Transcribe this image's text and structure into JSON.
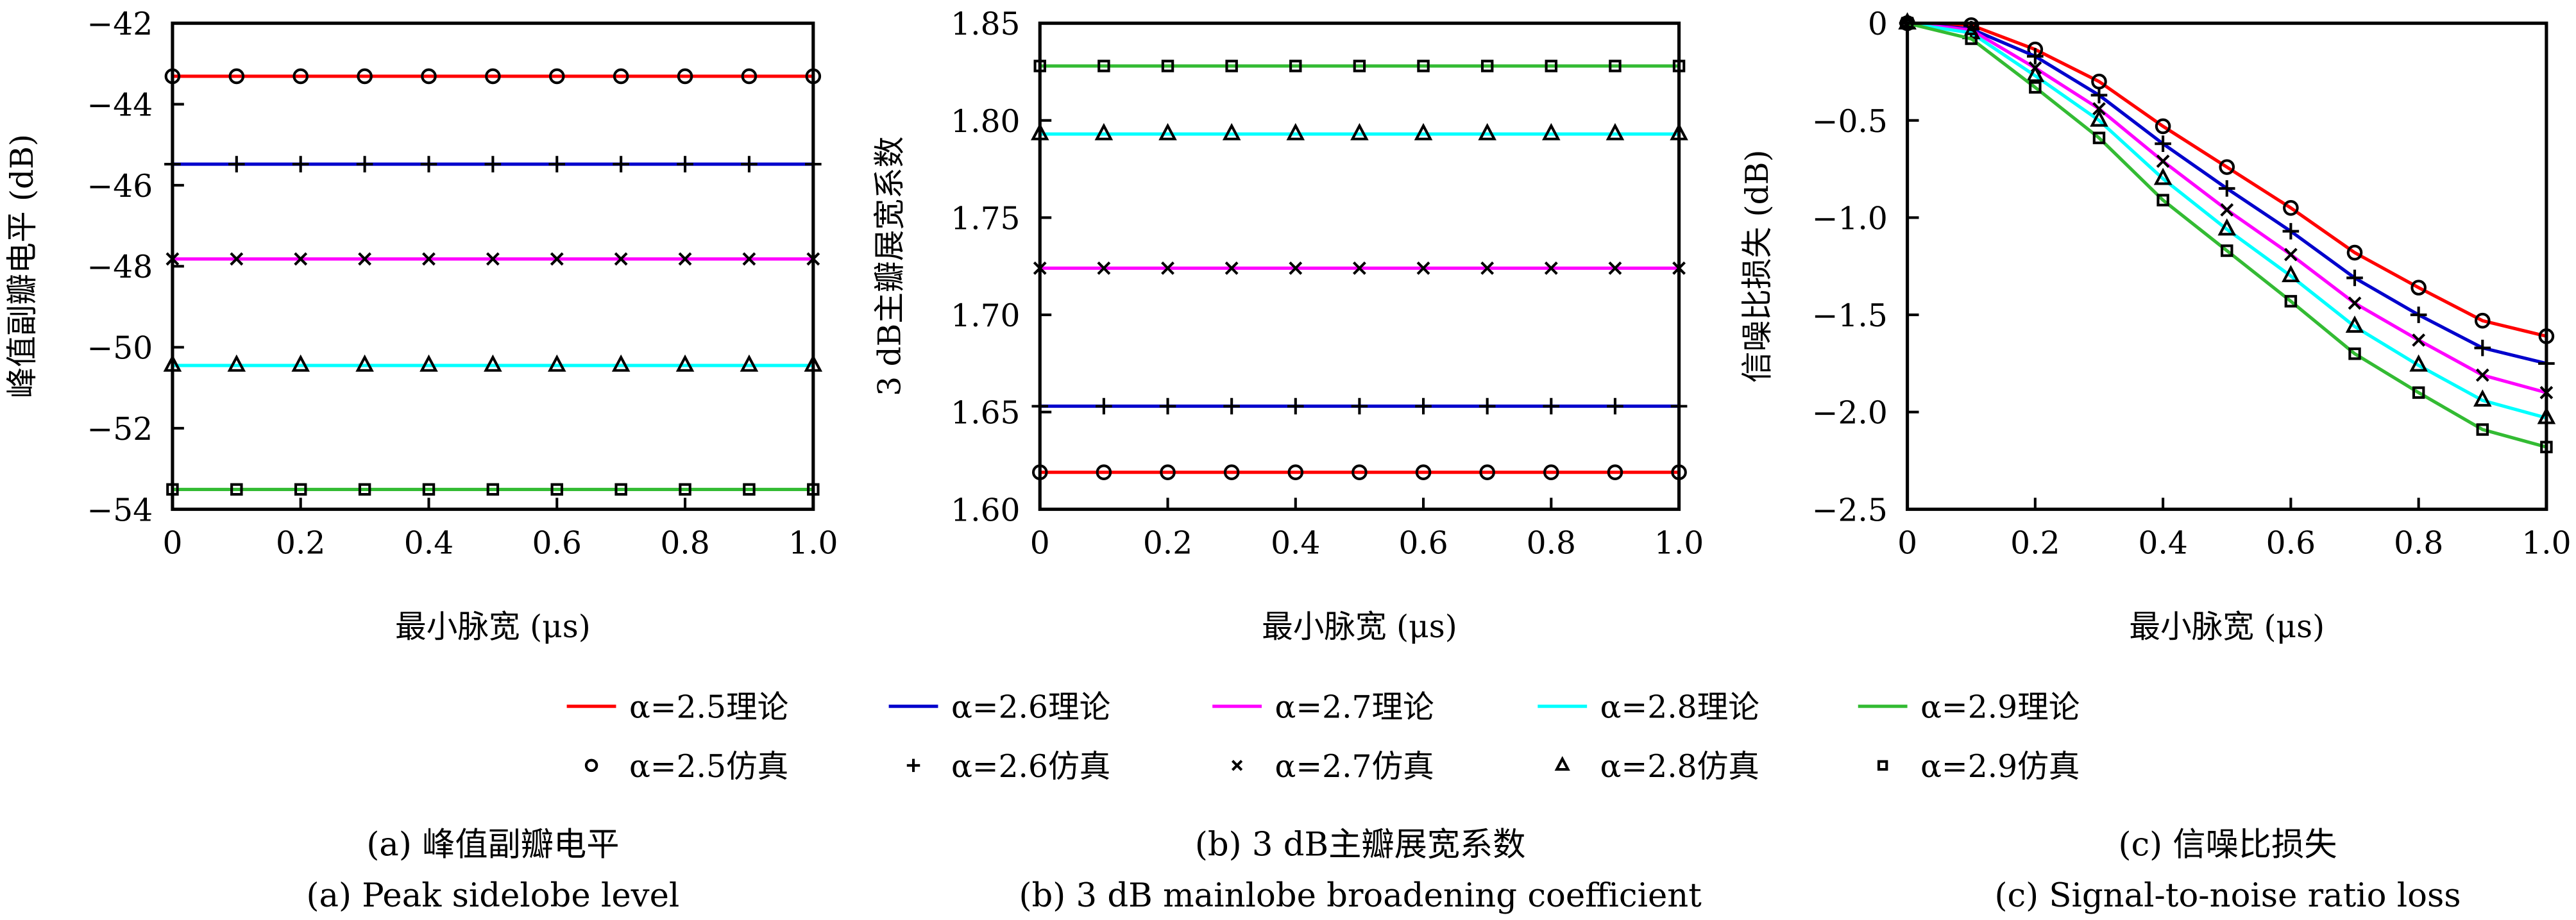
{
  "legend": {
    "theory": [
      "α=2.5理论",
      "α=2.6理论",
      "α=2.7理论",
      "α=2.8理论",
      "α=2.9理论"
    ],
    "simulation": [
      "α=2.5仿真",
      "α=2.6仿真",
      "α=2.7仿真",
      "α=2.8仿真",
      "α=2.9仿真"
    ]
  },
  "captions": {
    "a_cn": "(a) 峰值副瓣电平",
    "a_en": "(a) Peak sidelobe level",
    "b_cn": "(b) 3 dB主瓣展宽系数",
    "b_en": "(b) 3 dB mainlobe broadening coefficient",
    "c_cn": "(c) 信噪比损失",
    "c_en": "(c) Signal-to-noise ratio loss"
  },
  "chart_data": [
    {
      "type": "line",
      "xlabel": "最小脉宽 (μs)",
      "ylabel": "峰值副瓣电平 (dB)",
      "xlim": [
        0,
        1.0
      ],
      "ylim": [
        -54,
        -42
      ],
      "xticks": [
        "0",
        "0.2",
        "0.4",
        "0.6",
        "0.8",
        "1.0"
      ],
      "yticks": [
        "-42",
        "-44",
        "-46",
        "-48",
        "-50",
        "-52",
        "-54"
      ],
      "x": [
        0,
        0.1,
        0.2,
        0.3,
        0.4,
        0.5,
        0.6,
        0.7,
        0.8,
        0.9,
        1.0
      ],
      "series": [
        {
          "color": "#ff0000",
          "marker": "circle",
          "values": [
            -43.31,
            -43.31,
            -43.31,
            -43.31,
            -43.31,
            -43.31,
            -43.31,
            -43.31,
            -43.31,
            -43.31,
            -43.31
          ]
        },
        {
          "color": "#0000cc",
          "marker": "plus",
          "values": [
            -45.48,
            -45.48,
            -45.48,
            -45.48,
            -45.48,
            -45.48,
            -45.48,
            -45.48,
            -45.48,
            -45.48,
            -45.48
          ]
        },
        {
          "color": "#ff00ff",
          "marker": "x",
          "values": [
            -47.82,
            -47.82,
            -47.82,
            -47.82,
            -47.82,
            -47.82,
            -47.82,
            -47.82,
            -47.82,
            -47.82,
            -47.82
          ]
        },
        {
          "color": "#00ffff",
          "marker": "triangle",
          "values": [
            -50.45,
            -50.45,
            -50.45,
            -50.45,
            -50.45,
            -50.45,
            -50.45,
            -50.45,
            -50.45,
            -50.45,
            -50.45
          ]
        },
        {
          "color": "#33bb33",
          "marker": "square",
          "values": [
            -53.51,
            -53.51,
            -53.51,
            -53.51,
            -53.51,
            -53.51,
            -53.51,
            -53.51,
            -53.51,
            -53.51,
            -53.51
          ]
        }
      ]
    },
    {
      "type": "line",
      "xlabel": "最小脉宽 (μs)",
      "ylabel": "3 dB主瓣展宽系数",
      "xlim": [
        0,
        1.0
      ],
      "ylim": [
        1.6,
        1.85
      ],
      "xticks": [
        "0",
        "0.2",
        "0.4",
        "0.6",
        "0.8",
        "1.0"
      ],
      "yticks": [
        "1.60",
        "1.65",
        "1.70",
        "1.75",
        "1.80",
        "1.85"
      ],
      "x": [
        0,
        0.1,
        0.2,
        0.3,
        0.4,
        0.5,
        0.6,
        0.7,
        0.8,
        0.9,
        1.0
      ],
      "series": [
        {
          "color": "#ff0000",
          "marker": "circle",
          "values": [
            1.619,
            1.619,
            1.619,
            1.619,
            1.619,
            1.619,
            1.619,
            1.619,
            1.619,
            1.619,
            1.619
          ]
        },
        {
          "color": "#0000cc",
          "marker": "plus",
          "values": [
            1.653,
            1.653,
            1.653,
            1.653,
            1.653,
            1.653,
            1.653,
            1.653,
            1.653,
            1.653,
            1.653
          ]
        },
        {
          "color": "#ff00ff",
          "marker": "x",
          "values": [
            1.724,
            1.724,
            1.724,
            1.724,
            1.724,
            1.724,
            1.724,
            1.724,
            1.724,
            1.724,
            1.724
          ]
        },
        {
          "color": "#00ffff",
          "marker": "triangle",
          "values": [
            1.793,
            1.793,
            1.793,
            1.793,
            1.793,
            1.793,
            1.793,
            1.793,
            1.793,
            1.793,
            1.793
          ]
        },
        {
          "color": "#33bb33",
          "marker": "square",
          "values": [
            1.828,
            1.828,
            1.828,
            1.828,
            1.828,
            1.828,
            1.828,
            1.828,
            1.828,
            1.828,
            1.828
          ]
        }
      ]
    },
    {
      "type": "line",
      "xlabel": "最小脉宽 (μs)",
      "ylabel": "信噪比损失 (dB)",
      "xlim": [
        0,
        1.0
      ],
      "ylim": [
        -2.5,
        0
      ],
      "xticks": [
        "0",
        "0.2",
        "0.4",
        "0.6",
        "0.8",
        "1.0"
      ],
      "yticks": [
        "0",
        "-0.5",
        "-1.0",
        "-1.5",
        "-2.0",
        "-2.5"
      ],
      "x": [
        0,
        0.1,
        0.2,
        0.3,
        0.4,
        0.5,
        0.6,
        0.7,
        0.8,
        0.9,
        1.0
      ],
      "series": [
        {
          "color": "#ff0000",
          "marker": "circle",
          "values": [
            0,
            -0.01,
            -0.135,
            -0.3,
            -0.53,
            -0.74,
            -0.95,
            -1.18,
            -1.36,
            -1.53,
            -1.61
          ]
        },
        {
          "color": "#0000cc",
          "marker": "plus",
          "values": [
            0,
            -0.03,
            -0.17,
            -0.37,
            -0.62,
            -0.85,
            -1.07,
            -1.31,
            -1.5,
            -1.67,
            -1.75
          ]
        },
        {
          "color": "#ff00ff",
          "marker": "x",
          "values": [
            0,
            -0.035,
            -0.23,
            -0.44,
            -0.71,
            -0.96,
            -1.19,
            -1.44,
            -1.63,
            -1.81,
            -1.9
          ]
        },
        {
          "color": "#00ffff",
          "marker": "triangle",
          "values": [
            0,
            -0.05,
            -0.27,
            -0.5,
            -0.8,
            -1.06,
            -1.3,
            -1.56,
            -1.76,
            -1.94,
            -2.03
          ]
        },
        {
          "color": "#33bb33",
          "marker": "square",
          "values": [
            0,
            -0.08,
            -0.33,
            -0.59,
            -0.91,
            -1.17,
            -1.43,
            -1.7,
            -1.9,
            -2.09,
            -2.18
          ]
        }
      ]
    }
  ]
}
